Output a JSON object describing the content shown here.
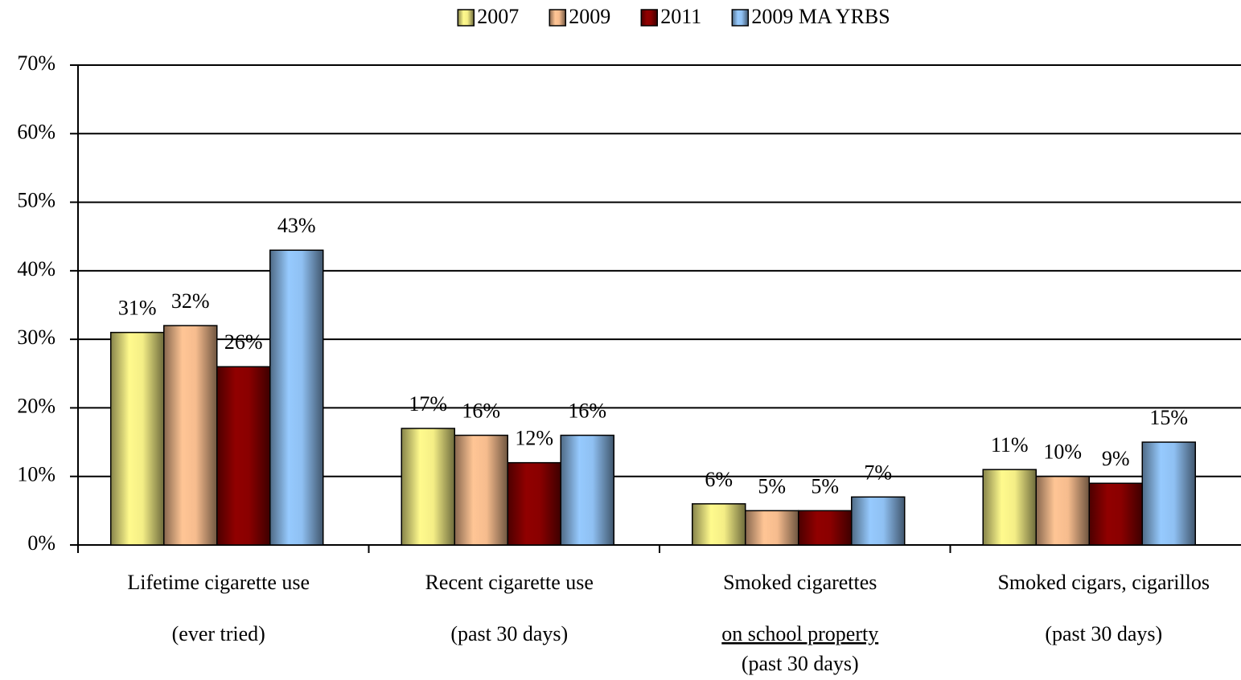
{
  "chart_data": {
    "type": "bar",
    "categories": [
      [
        "Lifetime cigarette use",
        "(ever tried)"
      ],
      [
        "Recent cigarette use",
        "(past 30 days)"
      ],
      [
        "Smoked cigarettes",
        "on school property",
        "(past 30 days)"
      ],
      [
        "Smoked cigars, cigarillos",
        "(past 30 days)"
      ]
    ],
    "series": [
      {
        "name": "2007",
        "color": "#f4ee86",
        "values": [
          31,
          17,
          6,
          11
        ],
        "value_labels": [
          "31%",
          "17%",
          "6%",
          "11%"
        ]
      },
      {
        "name": "2009",
        "color": "#f6bc8e",
        "values": [
          32,
          16,
          5,
          10
        ],
        "value_labels": [
          "32%",
          "16%",
          "5%",
          "10%"
        ]
      },
      {
        "name": "2011",
        "color": "#8a0000",
        "values": [
          26,
          12,
          5,
          9
        ],
        "value_labels": [
          "26%",
          "12%",
          "5%",
          "9%"
        ]
      },
      {
        "name": "2009 MA YRBS",
        "color": "#8fc0f2",
        "values": [
          43,
          16,
          7,
          15
        ],
        "value_labels": [
          "43%",
          "16%",
          "7%",
          "15%"
        ]
      }
    ],
    "ylim": [
      0,
      70
    ],
    "yticks": [
      {
        "value": 0,
        "label": "0%"
      },
      {
        "value": 10,
        "label": "10%"
      },
      {
        "value": 20,
        "label": "20%"
      },
      {
        "value": 30,
        "label": "30%"
      },
      {
        "value": 40,
        "label": "40%"
      },
      {
        "value": 50,
        "label": "50%"
      },
      {
        "value": 60,
        "label": "60%"
      },
      {
        "value": 70,
        "label": "70%"
      }
    ],
    "grid": true,
    "legend": "top"
  }
}
